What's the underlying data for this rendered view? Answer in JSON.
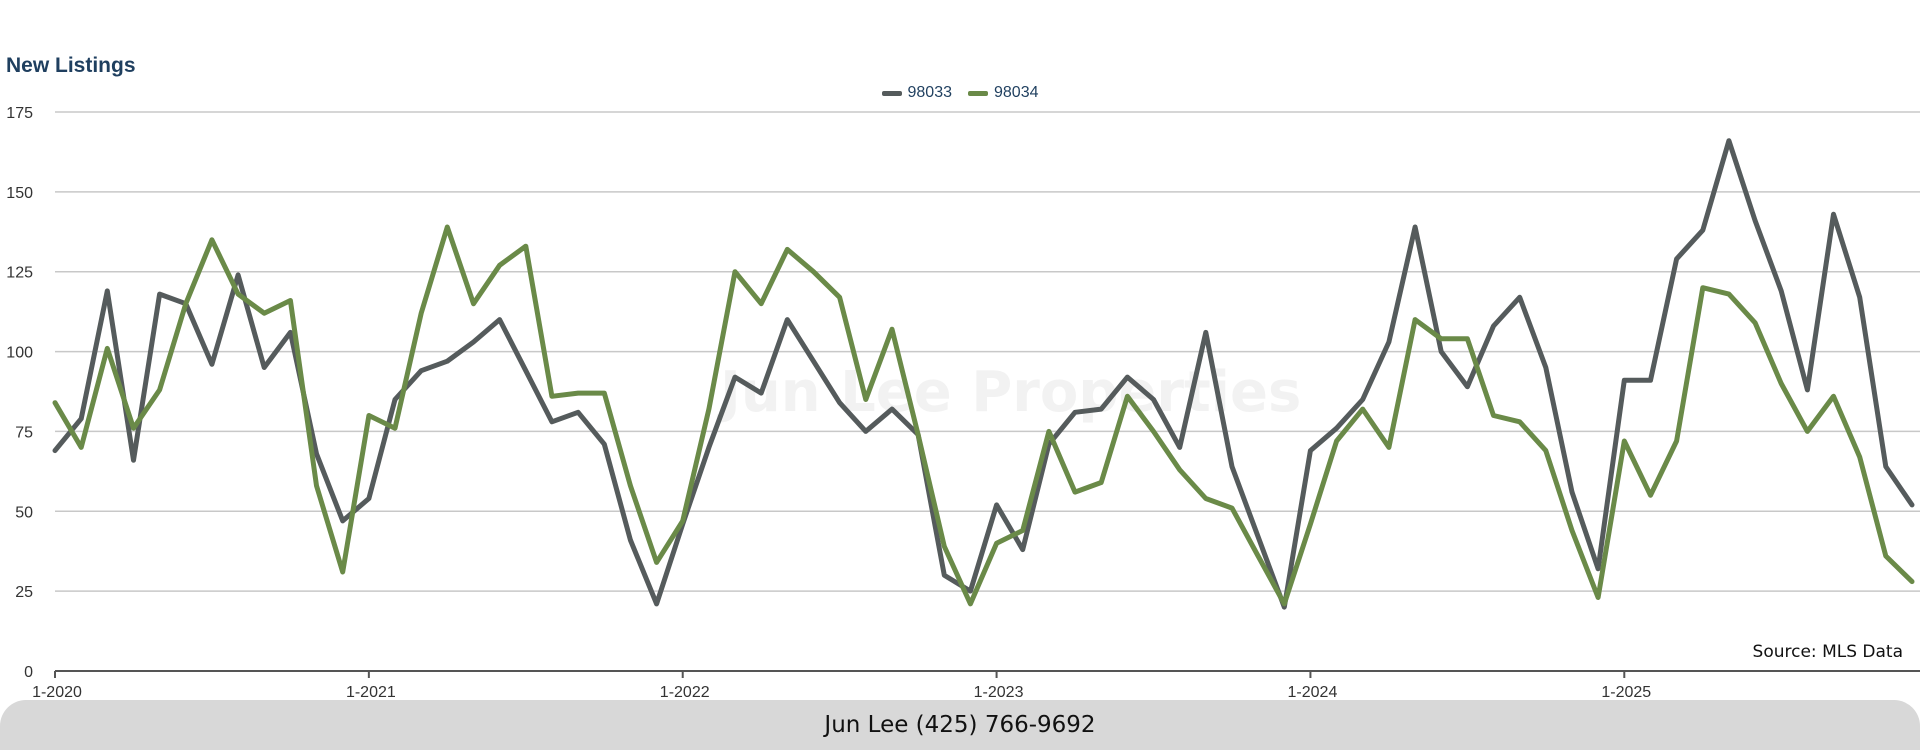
{
  "watermark": "Jun Lee Properties",
  "source": "Source: MLS Data",
  "footer": {
    "contact": "Jun Lee (425) 766-9692"
  },
  "chart_data": {
    "type": "line",
    "title": "New Listings",
    "xlabel": "",
    "ylabel": "",
    "ylim": [
      0,
      175
    ],
    "yticks": [
      0,
      25,
      50,
      75,
      100,
      125,
      150,
      175
    ],
    "xlim": [
      "1-2020",
      "12-2025"
    ],
    "xticks": [
      "1-2020",
      "1-2021",
      "1-2022",
      "1-2023",
      "1-2024",
      "1-2025"
    ],
    "grid": true,
    "legend_position": "top-center",
    "x": [
      "1-2020",
      "2-2020",
      "3-2020",
      "4-2020",
      "5-2020",
      "6-2020",
      "7-2020",
      "8-2020",
      "9-2020",
      "10-2020",
      "11-2020",
      "12-2020",
      "1-2021",
      "2-2021",
      "3-2021",
      "4-2021",
      "5-2021",
      "6-2021",
      "7-2021",
      "8-2021",
      "9-2021",
      "10-2021",
      "11-2021",
      "12-2021",
      "1-2022",
      "2-2022",
      "3-2022",
      "4-2022",
      "5-2022",
      "6-2022",
      "7-2022",
      "8-2022",
      "9-2022",
      "10-2022",
      "11-2022",
      "12-2022",
      "1-2023",
      "2-2023",
      "3-2023",
      "4-2023",
      "5-2023",
      "6-2023",
      "7-2023",
      "8-2023",
      "9-2023",
      "10-2023",
      "11-2023",
      "12-2023",
      "1-2024",
      "2-2024",
      "3-2024",
      "4-2024",
      "5-2024",
      "6-2024",
      "7-2024",
      "8-2024",
      "9-2024",
      "10-2024",
      "11-2024",
      "12-2024",
      "1-2025",
      "2-2025",
      "3-2025",
      "4-2025",
      "5-2025",
      "6-2025",
      "7-2025",
      "8-2025",
      "9-2025",
      "10-2025",
      "11-2025",
      "12-2025"
    ],
    "series": [
      {
        "name": "98033",
        "color": "#555b5c",
        "values": [
          69,
          79,
          119,
          66,
          118,
          115,
          96,
          124,
          95,
          106,
          68,
          47,
          54,
          85,
          94,
          97,
          103,
          110,
          94,
          78,
          81,
          71,
          41,
          21,
          46,
          70,
          92,
          87,
          110,
          97,
          84,
          75,
          82,
          74,
          30,
          25,
          52,
          38,
          71,
          81,
          82,
          92,
          85,
          70,
          106,
          64,
          42,
          20,
          69,
          76,
          85,
          103,
          139,
          100,
          89,
          108,
          117,
          95,
          56,
          32,
          91,
          91,
          129,
          138,
          166,
          141,
          119,
          88,
          143,
          117,
          64,
          52
        ]
      },
      {
        "name": "98034",
        "color": "#6a8a48",
        "values": [
          84,
          70,
          101,
          76,
          88,
          115,
          135,
          118,
          112,
          116,
          58,
          31,
          80,
          76,
          112,
          139,
          115,
          127,
          133,
          86,
          87,
          87,
          58,
          34,
          47,
          82,
          125,
          115,
          132,
          125,
          117,
          85,
          107,
          74,
          39,
          21,
          40,
          44,
          75,
          56,
          59,
          86,
          75,
          63,
          54,
          51,
          36,
          21,
          46,
          72,
          82,
          70,
          110,
          104,
          104,
          80,
          78,
          69,
          44,
          23,
          72,
          55,
          72,
          120,
          118,
          109,
          90,
          75,
          86,
          67,
          36,
          28
        ]
      }
    ]
  }
}
